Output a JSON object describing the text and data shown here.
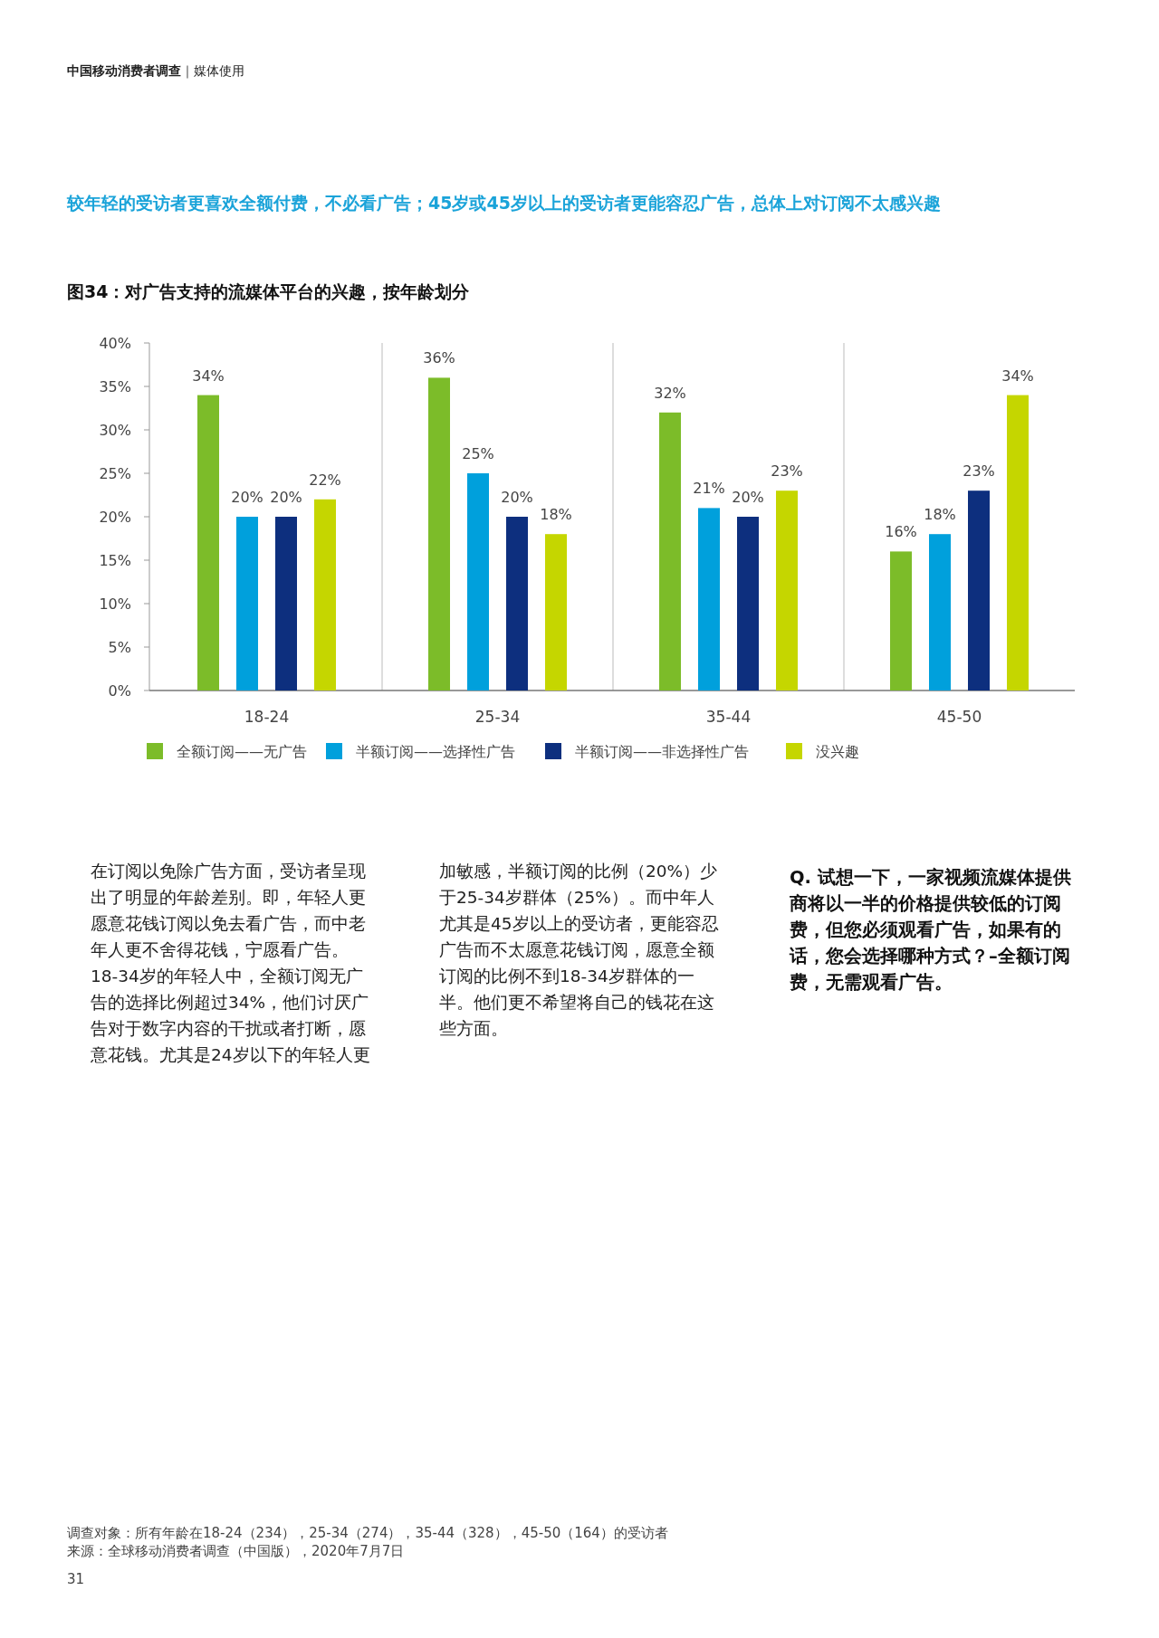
{
  "chart_data": {
    "type": "bar",
    "title": "图34：对广告支持的流媒体平台的兴趣，按年龄划分",
    "subtitle": "较年轻的受访者更喜欢全额付费，不必看广告；45岁或45岁以上的受访者更能容忍广告，总体上对订阅不太感兴趣",
    "categories": [
      "18-24",
      "25-34",
      "35-44",
      "45-50"
    ],
    "series": [
      {
        "name": "全额订阅——无广告",
        "color": "#7cbc29",
        "values": [
          34,
          36,
          32,
          16
        ],
        "value_labels": [
          "34%",
          "36%",
          "32%",
          "16%"
        ]
      },
      {
        "name": "半额订阅——选择性广告",
        "color": "#00a0dc",
        "values": [
          20,
          25,
          21,
          18
        ],
        "value_labels": [
          "20%",
          "25%",
          "21%",
          "18%"
        ]
      },
      {
        "name": "半额订阅——非选择性广告",
        "color": "#0d2f7e",
        "values": [
          20,
          20,
          20,
          23
        ],
        "value_labels": [
          "20%",
          "20%",
          "20%",
          "23%"
        ]
      },
      {
        "name": "没兴趣",
        "color": "#c5d600",
        "values": [
          22,
          18,
          23,
          34
        ],
        "value_labels": [
          "22%",
          "18%",
          "23%",
          "34%"
        ]
      }
    ],
    "ylim": [
      0,
      40
    ],
    "yticks": [
      {
        "value": 0,
        "label": "0%"
      },
      {
        "value": 5,
        "label": "5%"
      },
      {
        "value": 10,
        "label": "10%"
      },
      {
        "value": 15,
        "label": "15%"
      },
      {
        "value": 20,
        "label": "20%"
      },
      {
        "value": 25,
        "label": "25%"
      },
      {
        "value": 30,
        "label": "30%"
      },
      {
        "value": 35,
        "label": "35%"
      },
      {
        "value": 40,
        "label": "40%"
      }
    ],
    "legend": "bottom",
    "annotations": [
      "**中国移动消费者调查**｜媒体使用",
      "在订阅以免除广告方面，受访者呈现出了明显的年龄差别。即，年轻人更愿意花钱订阅以免去看广告，而中老年人更不舍得花钱，宁愿看广告。18-34岁的年轻人中，全额订阅无广告的选择比例超过34%，他们讨厌广告对于数字内容的干扰或者打断，愿意花钱。尤其是24岁以下的年轻人更加敏感，半额订阅的比例（20%）少于25-34岁群体（25%）。而中年人尤其是45岁以上的受访者，更能容忍广告而不太愿意花钱订阅，愿意全额订阅的比例不到18-34岁群体的一半。他们更不希望将自己的钱花在这些方面。",
      "Q. 试想一下，一家视频流媒体提供商将以一半的价格提供较低的订阅费，但您必须观看广告，如果有的话，您会选择哪种方式？–全额订阅费，无需观看广告。",
      "调查对象：所有年龄在18-24（234），25-34（274），35-44（328），45-50（164）的受访者",
      "来源：全球移动消费者调查（中国版），2020年7月7日",
      "31"
    ]
  }
}
